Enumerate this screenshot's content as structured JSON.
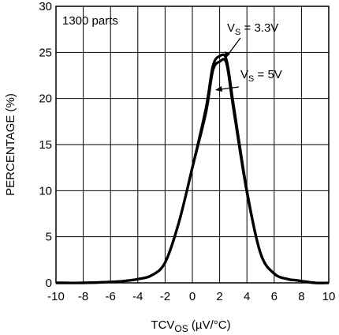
{
  "chart_data": {
    "type": "line",
    "title": "",
    "xlabel_main": "TCV",
    "xlabel_sub": "OS",
    "xlabel_unit": " (µV/°C)",
    "ylabel": "PERCENTAGE (%)",
    "xlim": [
      -10,
      10
    ],
    "ylim": [
      0,
      30
    ],
    "x_ticks": [
      -10,
      -8,
      -6,
      -4,
      -2,
      0,
      2,
      4,
      6,
      8,
      10
    ],
    "y_ticks": [
      0,
      5,
      10,
      15,
      20,
      25,
      30
    ],
    "grid": true,
    "annotation_parts": "1300 parts",
    "series": [
      {
        "label_main": "V",
        "label_sub": "S",
        "label_rest": " = 3.3V",
        "x": [
          -10,
          -8,
          -6,
          -5,
          -4,
          -3,
          -2,
          -1,
          0,
          1,
          1.5,
          2,
          2.5,
          3,
          4,
          5,
          6,
          7,
          7.5,
          8,
          9,
          10
        ],
        "y": [
          0,
          0,
          0.1,
          0.2,
          0.4,
          0.8,
          2.2,
          6.5,
          12.5,
          19,
          23.5,
          24.6,
          24.2,
          19.5,
          10,
          3.2,
          1.0,
          0.4,
          0.3,
          0.2,
          0,
          0
        ]
      },
      {
        "label_main": "V",
        "label_sub": "S",
        "label_rest": " = 5V",
        "x": [
          -10,
          -8,
          -6,
          -5,
          -4,
          -3,
          -2,
          -1,
          0,
          1,
          1.5,
          2,
          2.5,
          3,
          4,
          5,
          6,
          7,
          7.5,
          8,
          9,
          10
        ],
        "y": [
          0,
          0,
          0.1,
          0.2,
          0.4,
          0.8,
          2.2,
          6.5,
          12.5,
          18.5,
          23,
          24.0,
          23.8,
          19.0,
          9.8,
          3.2,
          1.0,
          0.4,
          0.3,
          0.2,
          0,
          0
        ]
      }
    ]
  }
}
